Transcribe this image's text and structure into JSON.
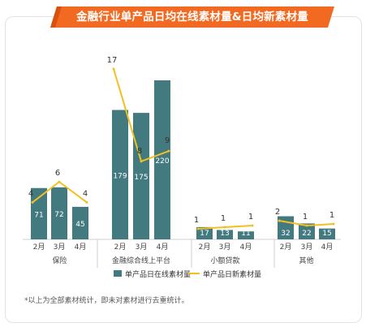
{
  "title": "金融行业单产品日均在线素材量&日均新素材量",
  "footnote": "*以上为全部素材统计，即未对素材进行去重统计。",
  "colors": {
    "bar": "#437a80",
    "line": "#f2c020",
    "banner": "#f26a21",
    "banner_dark": "#d9500f"
  },
  "chart_data": {
    "type": "bar+line",
    "groups": [
      {
        "name": "保险",
        "months": [
          "2月",
          "3月",
          "4月"
        ],
        "bars": [
          71,
          72,
          45
        ],
        "line": [
          4,
          6,
          4
        ]
      },
      {
        "name": "金融综合线上平台",
        "months": [
          "2月",
          "3月",
          "4月"
        ],
        "bars": [
          179,
          175,
          220
        ],
        "line": [
          17,
          8,
          9
        ]
      },
      {
        "name": "小额贷款",
        "months": [
          "2月",
          "3月",
          "4月"
        ],
        "bars": [
          17,
          13,
          11
        ],
        "line": [
          1,
          1,
          1
        ]
      },
      {
        "name": "其他",
        "months": [
          "2月",
          "3月",
          "4月"
        ],
        "bars": [
          32,
          22,
          15
        ],
        "line": [
          2,
          1,
          1
        ]
      }
    ],
    "series": [
      {
        "name": "单产品日在线素材量",
        "type": "bar"
      },
      {
        "name": "单产品日新素材量",
        "type": "line"
      }
    ],
    "bar_max": 220,
    "line_max": 17,
    "legend_position": "bottom"
  }
}
